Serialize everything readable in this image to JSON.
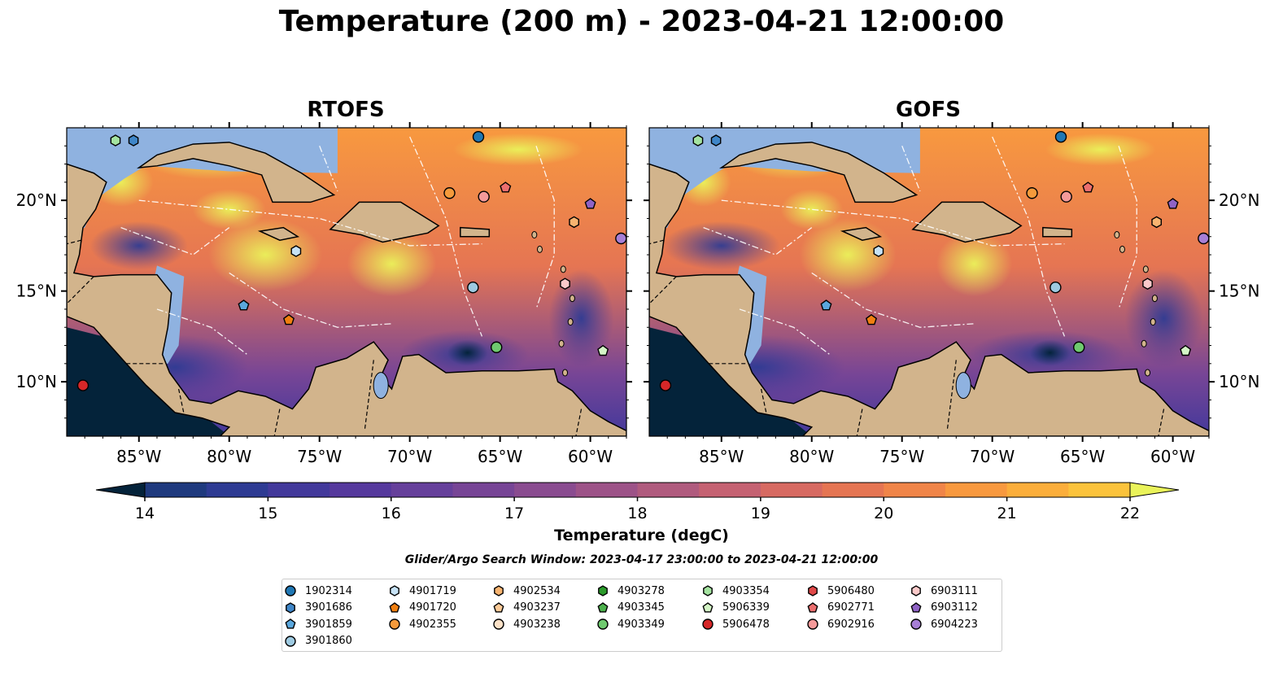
{
  "title": "Temperature (200 m) - 2023-04-21 12:00:00",
  "panels": [
    {
      "title": "RTOFS"
    },
    {
      "title": "GOFS"
    }
  ],
  "axes": {
    "lon_ticks": [
      "85°W",
      "80°W",
      "75°W",
      "70°W",
      "65°W",
      "60°W"
    ],
    "lat_ticks": [
      "20°N",
      "15°N",
      "10°N"
    ],
    "lon_range": [
      -89,
      -58
    ],
    "lat_range": [
      7,
      24
    ]
  },
  "colorbar": {
    "label": "Temperature (degC)",
    "ticks": [
      "14",
      "15",
      "16",
      "17",
      "18",
      "19",
      "20",
      "21",
      "22"
    ],
    "range": [
      14,
      22
    ],
    "colors": [
      "#04233a",
      "#13305e",
      "#1f3a7e",
      "#2e3b93",
      "#43399b",
      "#56399d",
      "#66409b",
      "#774596",
      "#8a4c90",
      "#9d5388",
      "#b05b7e",
      "#c56272",
      "#d76a62",
      "#e57553",
      "#f08549",
      "#f8993f",
      "#fbae3b",
      "#fbc33c",
      "#f5dd44",
      "#eaf35a"
    ]
  },
  "search_window": "Glider/Argo Search Window: 2023-04-17 23:00:00 to 2023-04-21 12:00:00",
  "legend": [
    {
      "id": "1902314",
      "marker": "circle",
      "color": "#1f77b4"
    },
    {
      "id": "3901686",
      "marker": "hexagon",
      "color": "#3f86c8"
    },
    {
      "id": "3901859",
      "marker": "pentagon",
      "color": "#5aa7dd"
    },
    {
      "id": "3901860",
      "marker": "circle",
      "color": "#9ecae1"
    },
    {
      "id": "4901719",
      "marker": "hexagon",
      "color": "#c6e2f5"
    },
    {
      "id": "4901720",
      "marker": "pentagon",
      "color": "#f07f10"
    },
    {
      "id": "4902355",
      "marker": "circle",
      "color": "#f59a3b"
    },
    {
      "id": "4902534",
      "marker": "hexagon",
      "color": "#f8b470"
    },
    {
      "id": "4903237",
      "marker": "pentagon",
      "color": "#fccb98"
    },
    {
      "id": "4903238",
      "marker": "circle",
      "color": "#fde2c8"
    },
    {
      "id": "4903278",
      "marker": "hexagon",
      "color": "#2a9a2a"
    },
    {
      "id": "4903345",
      "marker": "pentagon",
      "color": "#4cb14c"
    },
    {
      "id": "4903349",
      "marker": "circle",
      "color": "#6fca6f"
    },
    {
      "id": "4903354",
      "marker": "hexagon",
      "color": "#a4e3a0"
    },
    {
      "id": "5906339",
      "marker": "pentagon",
      "color": "#d4f5c6"
    },
    {
      "id": "5906478",
      "marker": "circle",
      "color": "#d62728"
    },
    {
      "id": "5906480",
      "marker": "hexagon",
      "color": "#e04848"
    },
    {
      "id": "6902771",
      "marker": "pentagon",
      "color": "#ec6f6f"
    },
    {
      "id": "6902916",
      "marker": "circle",
      "color": "#f59a9a"
    },
    {
      "id": "6903111",
      "marker": "hexagon",
      "color": "#fbcaca"
    },
    {
      "id": "6903112",
      "marker": "pentagon",
      "color": "#8f63c5"
    },
    {
      "id": "6904223",
      "marker": "circle",
      "color": "#a77fd6"
    }
  ],
  "floats": [
    {
      "id": "1902314",
      "lon": -66.2,
      "lat": 23.5
    },
    {
      "id": "3901686",
      "lon": -85.3,
      "lat": 23.3
    },
    {
      "id": "3901859",
      "lon": -79.2,
      "lat": 14.2
    },
    {
      "id": "3901860",
      "lon": -66.5,
      "lat": 15.2
    },
    {
      "id": "4901719",
      "lon": -76.3,
      "lat": 17.2
    },
    {
      "id": "4901720",
      "lon": -76.7,
      "lat": 13.4
    },
    {
      "id": "4902355",
      "lon": -67.8,
      "lat": 20.4
    },
    {
      "id": "4903354",
      "lon": -86.3,
      "lat": 23.3
    },
    {
      "id": "5906339",
      "lon": -59.3,
      "lat": 11.7
    },
    {
      "id": "4903349",
      "lon": -65.2,
      "lat": 11.9
    },
    {
      "id": "5906478",
      "lon": -88.1,
      "lat": 9.8
    },
    {
      "id": "6902771",
      "lon": -64.7,
      "lat": 20.7
    },
    {
      "id": "6902916",
      "lon": -65.9,
      "lat": 20.2
    },
    {
      "id": "6903111",
      "lon": -61.4,
      "lat": 15.4
    },
    {
      "id": "6903112",
      "lon": -60.0,
      "lat": 19.8
    },
    {
      "id": "6904223",
      "lon": -58.3,
      "lat": 17.9
    },
    {
      "id": "4902534",
      "lon": -60.9,
      "lat": 18.8
    }
  ]
}
